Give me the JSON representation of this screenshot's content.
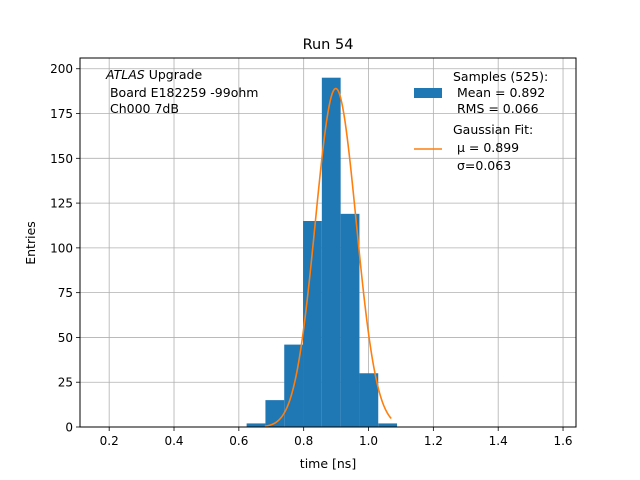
{
  "chart_data": {
    "type": "bar",
    "title": "Run 54",
    "xlabel": "time [ns]",
    "ylabel": "Entries",
    "xlim": [
      0.11,
      1.64
    ],
    "ylim": [
      0,
      206
    ],
    "xticks": [
      0.2,
      0.4,
      0.6,
      0.8,
      1.0,
      1.2,
      1.4,
      1.6
    ],
    "xtick_labels": [
      "0.2",
      "0.4",
      "0.6",
      "0.8",
      "1.0",
      "1.2",
      "1.4",
      "1.6"
    ],
    "yticks": [
      0,
      25,
      50,
      75,
      100,
      125,
      150,
      175,
      200
    ],
    "ytick_labels": [
      "0",
      "25",
      "50",
      "75",
      "100",
      "125",
      "150",
      "175",
      "200"
    ],
    "grid": true,
    "legend_position": "top-right",
    "annotation": {
      "line1_italic": "ATLAS",
      "line1_rest": " Upgrade",
      "line2": " Board E182259 -99ohm",
      "line3": " Ch000 7dB"
    },
    "histogram": {
      "bin_edges": [
        0.624,
        0.682,
        0.74,
        0.798,
        0.856,
        0.914,
        0.972,
        1.03,
        1.088
      ],
      "counts": [
        2,
        15,
        46,
        115,
        195,
        119,
        30,
        2
      ],
      "color": "#1f77b4"
    },
    "fit": {
      "type": "gaussian",
      "mu": 0.899,
      "sigma": 0.063,
      "amplitude": 189,
      "x_range": [
        0.68,
        1.07
      ],
      "color": "#ff7f0e"
    },
    "legend": [
      {
        "type": "patch",
        "color": "#1f77b4",
        "lines": [
          "Samples (525):",
          " Mean = 0.892",
          " RMS = 0.066"
        ]
      },
      {
        "type": "line",
        "color": "#ff7f0e",
        "lines": [
          "Gaussian Fit:",
          " μ = 0.899",
          " σ=0.063"
        ]
      }
    ]
  }
}
